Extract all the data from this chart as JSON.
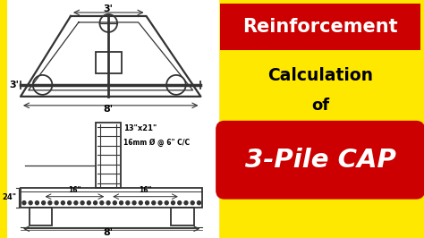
{
  "bg_color": "#FFE800",
  "left_bg": "#FFFFFF",
  "red_color": "#CC0000",
  "white_color": "#FFFFFF",
  "black_color": "#000000",
  "line_color": "#333333",
  "text_reinforcement": "Reinforcement",
  "text_calculation": "Calculation",
  "text_of": "of",
  "text_3pile": "3-Pile CAP",
  "dim_3ft_top": "3'",
  "dim_3ft_left": "3'",
  "dim_8ft_top": "8'",
  "dim_8ft_bot": "8'",
  "dim_13x21": "13\"x21\"",
  "dim_16mm": "16mm Ø @ 6\" C/C",
  "dim_16left": "16\"",
  "dim_16right": "16\"",
  "dim_24": "24\""
}
